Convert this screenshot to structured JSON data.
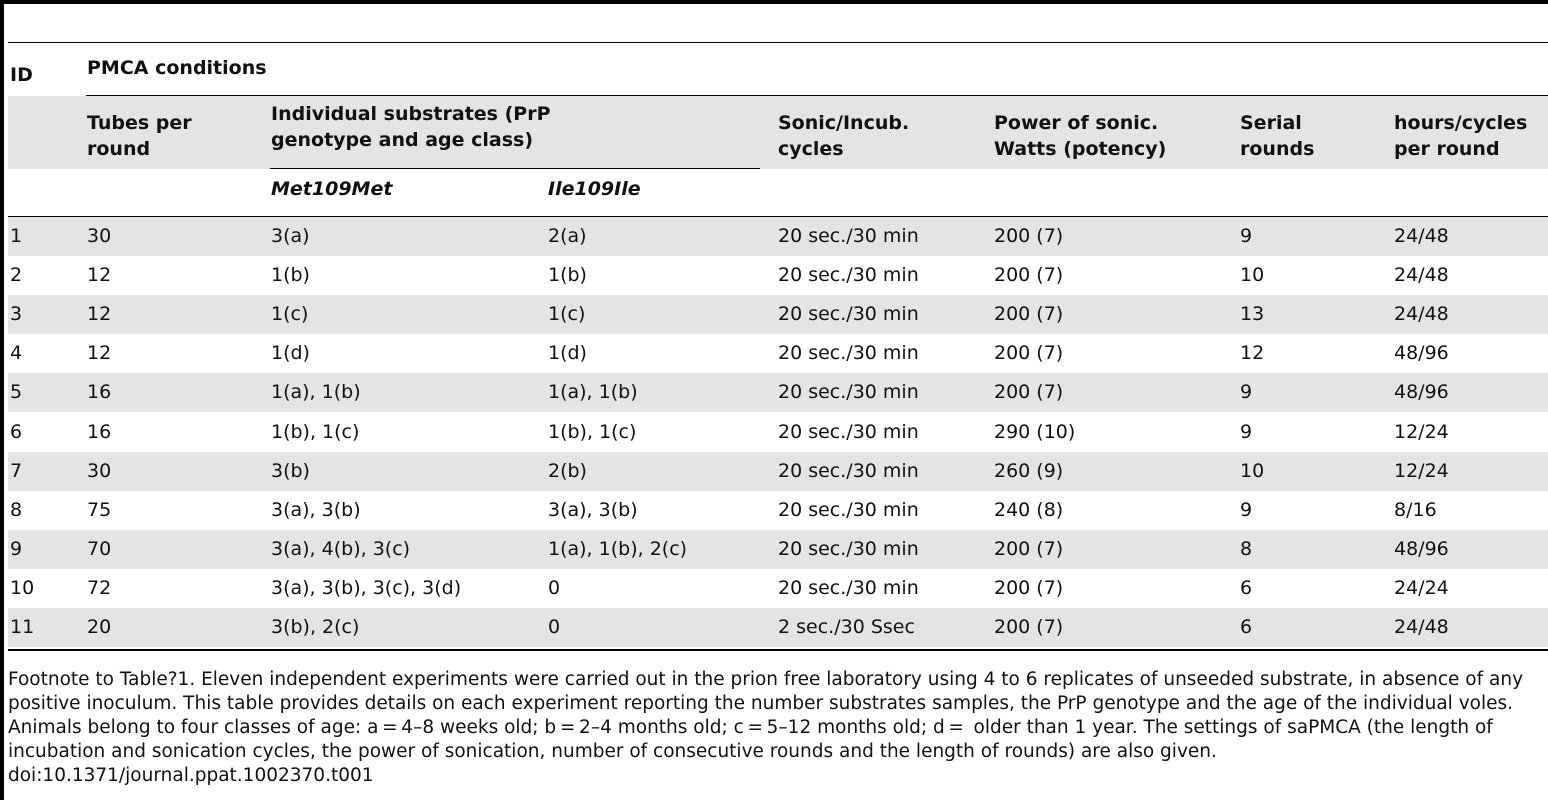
{
  "header": {
    "id": "ID",
    "pmca": "PMCA conditions",
    "tubes_line1": "Tubes per",
    "tubes_line2": "round",
    "substrates_line1": "Individual substrates (PrP",
    "substrates_line2": "genotype and age class)",
    "sonic_line1": "Sonic/Incub.",
    "sonic_line2": "cycles",
    "power_line1": "Power of sonic.",
    "power_line2": "Watts (potency)",
    "serial_line1": "Serial",
    "serial_line2": "rounds",
    "hours_line1": "hours/cycles",
    "hours_line2": "per round",
    "met": "Met109Met",
    "ile": "Ile109Ile"
  },
  "rows": [
    {
      "id": "1",
      "tubes": "30",
      "met": "3(a)",
      "ile": "2(a)",
      "sonic": "20 sec./30 min",
      "power": "200 (7)",
      "serial": "9",
      "hours": "24/48"
    },
    {
      "id": "2",
      "tubes": "12",
      "met": "1(b)",
      "ile": "1(b)",
      "sonic": "20 sec./30 min",
      "power": "200 (7)",
      "serial": "10",
      "hours": "24/48"
    },
    {
      "id": "3",
      "tubes": "12",
      "met": "1(c)",
      "ile": "1(c)",
      "sonic": "20 sec./30 min",
      "power": "200 (7)",
      "serial": "13",
      "hours": "24/48"
    },
    {
      "id": "4",
      "tubes": "12",
      "met": "1(d)",
      "ile": "1(d)",
      "sonic": "20 sec./30 min",
      "power": "200 (7)",
      "serial": "12",
      "hours": "48/96"
    },
    {
      "id": "5",
      "tubes": "16",
      "met": "1(a), 1(b)",
      "ile": "1(a), 1(b)",
      "sonic": "20 sec./30 min",
      "power": "200 (7)",
      "serial": "9",
      "hours": "48/96"
    },
    {
      "id": "6",
      "tubes": "16",
      "met": "1(b), 1(c)",
      "ile": "1(b), 1(c)",
      "sonic": "20 sec./30 min",
      "power": "290 (10)",
      "serial": "9",
      "hours": "12/24"
    },
    {
      "id": "7",
      "tubes": "30",
      "met": "3(b)",
      "ile": "2(b)",
      "sonic": "20 sec./30 min",
      "power": "260 (9)",
      "serial": "10",
      "hours": "12/24"
    },
    {
      "id": "8",
      "tubes": "75",
      "met": "3(a), 3(b)",
      "ile": "3(a), 3(b)",
      "sonic": "20 sec./30 min",
      "power": "240 (8)",
      "serial": "9",
      "hours": "8/16"
    },
    {
      "id": "9",
      "tubes": "70",
      "met": "3(a), 4(b), 3(c)",
      "ile": "1(a), 1(b), 2(c)",
      "sonic": "20 sec./30 min",
      "power": "200 (7)",
      "serial": "8",
      "hours": "48/96"
    },
    {
      "id": "10",
      "tubes": "72",
      "met": "3(a), 3(b), 3(c), 3(d)",
      "ile": "0",
      "sonic": "20 sec./30 min",
      "power": "200 (7)",
      "serial": "6",
      "hours": "24/24"
    },
    {
      "id": "11",
      "tubes": "20",
      "met": "3(b), 2(c)",
      "ile": "0",
      "sonic": "2 sec./30 Ssec",
      "power": "200 (7)",
      "serial": "6",
      "hours": "24/48"
    }
  ],
  "footnote": "Footnote to Table?1. Eleven independent experiments were carried out in the prion free laboratory using 4 to 6 replicates of unseeded substrate, in absence of any positive inoculum. This table provides details on each experiment reporting the number substrates samples, the PrP genotype and the age of the individual voles. Animals belong to four classes of age: a = 4–8 weeks old; b = 2–4 months old; c = 5–12 months old; d =  older than 1 year. The settings of saPMCA (the length of incubation and sonication cycles, the power of sonication, number of consecutive rounds and the length of rounds) are also given.",
  "doi": "doi:10.1371/journal.ppat.1002370.t001"
}
